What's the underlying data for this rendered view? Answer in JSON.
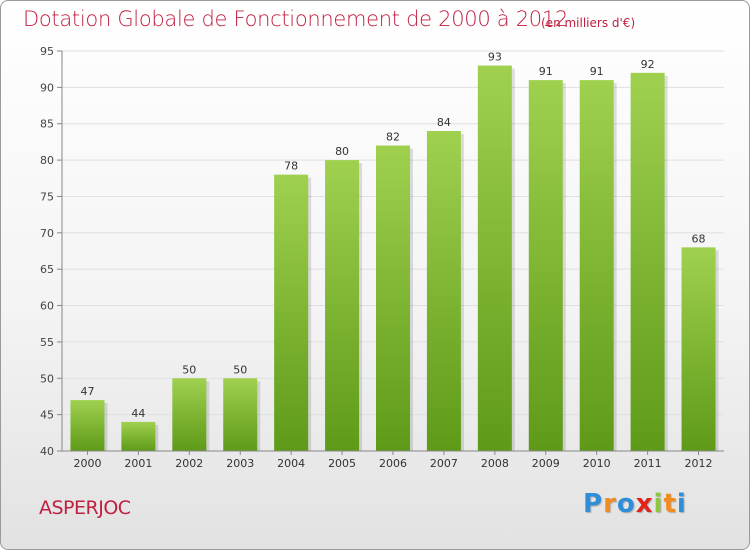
{
  "title": "Dotation Globale de Fonctionnement de 2000 à 2012",
  "subtitle": "(en milliers d'€)",
  "commune": "ASPERJOC",
  "logo": {
    "letters": [
      "P",
      "r",
      "o",
      "x",
      "i",
      "t",
      "i"
    ],
    "colors": [
      "#2e8fd8",
      "#f28c1e",
      "#2e8fd8",
      "#e2231a",
      "#8dc63f",
      "#f28c1e",
      "#2e8fd8"
    ]
  },
  "colors": {
    "title": "#c0203f",
    "bar_top": "#9fd14f",
    "bar_bottom": "#5e9a18",
    "grid": "#e0e0e0"
  },
  "chart_data": {
    "type": "bar",
    "title": "Dotation Globale de Fonctionnement de 2000 à 2012",
    "xlabel": "",
    "ylabel": "",
    "categories": [
      "2000",
      "2001",
      "2002",
      "2003",
      "2004",
      "2005",
      "2006",
      "2007",
      "2008",
      "2009",
      "2010",
      "2011",
      "2012"
    ],
    "values": [
      47,
      44,
      50,
      50,
      78,
      80,
      82,
      84,
      93,
      91,
      91,
      92,
      68
    ],
    "ylim": [
      40,
      95
    ],
    "yticks": [
      40,
      45,
      50,
      55,
      60,
      65,
      70,
      75,
      80,
      85,
      90,
      95
    ],
    "grid": "horizontal",
    "legend": "none"
  }
}
